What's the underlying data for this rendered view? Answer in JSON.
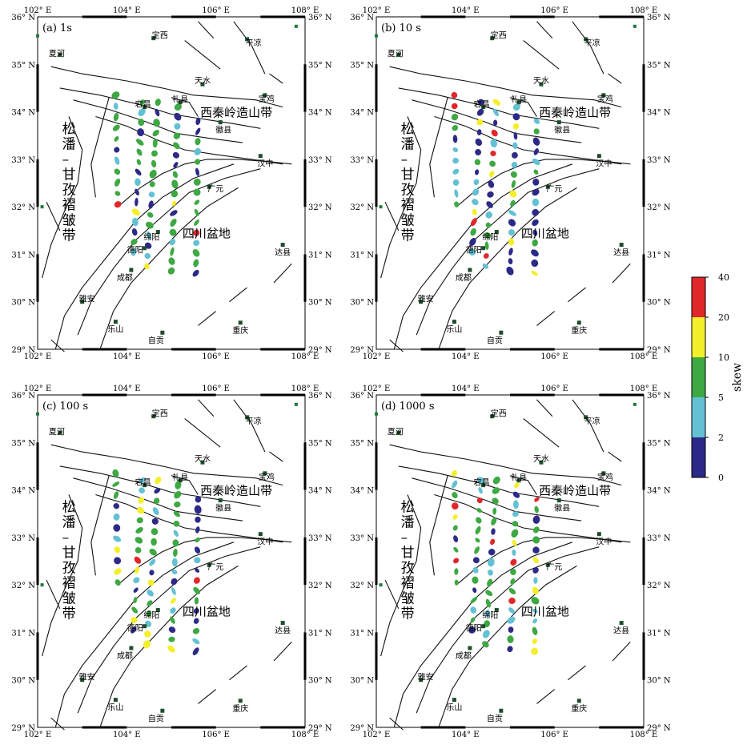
{
  "colorbar": {
    "title": "skew",
    "ticks": [
      "40",
      "20",
      "10",
      "5",
      "2",
      "0"
    ],
    "bins": [
      {
        "range": "20-40",
        "color": "#e0282a"
      },
      {
        "range": "10-20",
        "color": "#f3ef2b"
      },
      {
        "range": "5-10",
        "color": "#3ea843"
      },
      {
        "range": "2-5",
        "color": "#63c1d3"
      },
      {
        "range": "0-2",
        "color": "#2c2a86"
      }
    ]
  },
  "axes": {
    "lon_labels": [
      "102° E",
      "104° E",
      "106° E",
      "108° E"
    ],
    "lat_labels": [
      "29° N",
      "30° N",
      "31° N",
      "32° N",
      "33° N",
      "34° N",
      "35° N",
      "36° N"
    ]
  },
  "regions": {
    "qinling": "西秦岭造山带",
    "basin": "四川盆地",
    "songpan": [
      "松",
      "潘",
      "–",
      "甘",
      "孜",
      "褶",
      "皱",
      "带"
    ]
  },
  "cities": [
    {
      "name": "定西",
      "lon": 104.6,
      "lat": 35.55
    },
    {
      "name": "平凉",
      "lon": 106.7,
      "lat": 35.53
    },
    {
      "name": "夏河",
      "lon": 102.5,
      "lat": 35.2
    },
    {
      "name": "天水",
      "lon": 105.7,
      "lat": 34.58
    },
    {
      "name": "宝鸡",
      "lon": 107.1,
      "lat": 34.35
    },
    {
      "name": "礼县",
      "lon": 105.2,
      "lat": 34.2
    },
    {
      "name": "宕昌",
      "lon": 104.4,
      "lat": 34.1
    },
    {
      "name": "徽县",
      "lon": 106.1,
      "lat": 33.78
    },
    {
      "name": "汉中",
      "lon": 107.0,
      "lat": 33.07
    },
    {
      "name": "广元",
      "lon": 105.85,
      "lat": 32.42
    },
    {
      "name": "达县",
      "lon": 107.5,
      "lat": 31.2
    },
    {
      "name": "绵阳",
      "lon": 104.7,
      "lat": 31.47
    },
    {
      "name": "德阳",
      "lon": 104.4,
      "lat": 31.13
    },
    {
      "name": "成都",
      "lon": 104.1,
      "lat": 30.67
    },
    {
      "name": "雅安",
      "lon": 103.0,
      "lat": 30.0
    },
    {
      "name": "乐山",
      "lon": 103.75,
      "lat": 29.58
    },
    {
      "name": "自贡",
      "lon": 104.8,
      "lat": 29.35
    },
    {
      "name": "重庆",
      "lon": 106.55,
      "lat": 29.56
    }
  ],
  "panels": [
    {
      "label": "(a) 1s",
      "period": "1s"
    },
    {
      "label": "(b) 10 s",
      "period": "10 s"
    },
    {
      "label": "(c) 100 s",
      "period": "100 s"
    },
    {
      "label": "(d) 1000 s",
      "period": "1000 s"
    }
  ]
}
